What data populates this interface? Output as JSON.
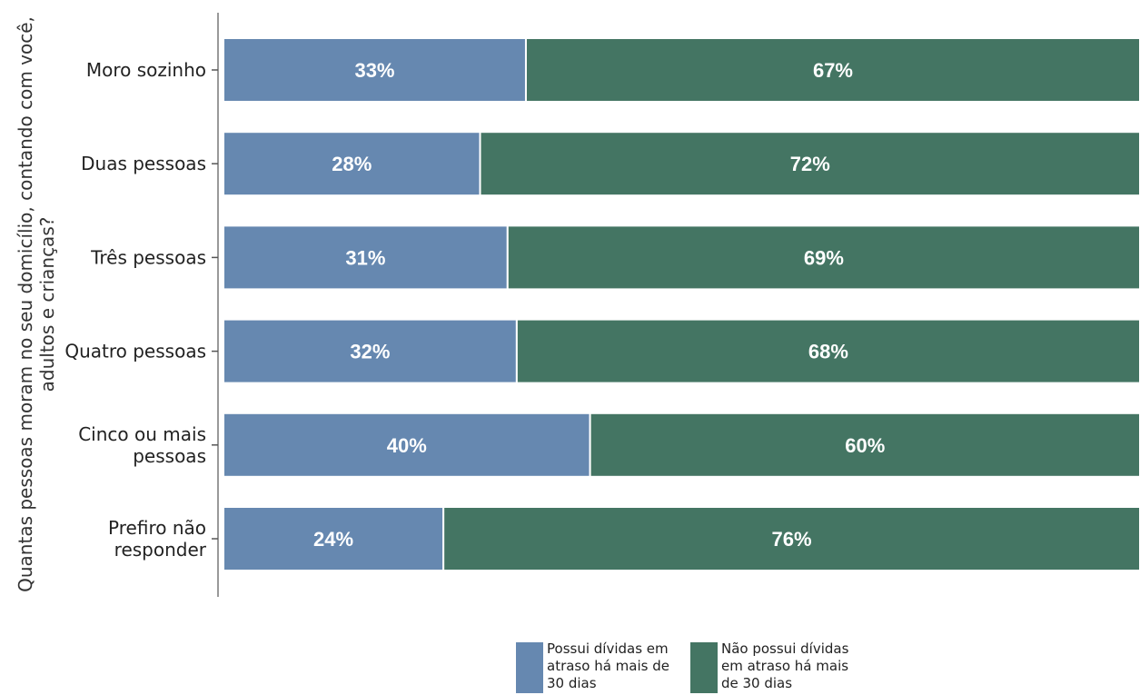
{
  "chart_data": {
    "type": "bar",
    "orientation": "horizontal",
    "stacked": true,
    "percent": true,
    "ylabel": "Quantas pessoas moram no seu domicílio, contando com você, adultos e crianças?",
    "ylabel_lines": [
      "Quantas pessoas moram no seu domicílio, contando com você,",
      "adultos e crianças?"
    ],
    "categories": [
      "Moro sozinho",
      "Duas pessoas",
      "Três pessoas",
      "Quatro pessoas",
      "Cinco ou mais pessoas",
      "Prefiro não responder"
    ],
    "category_lines": [
      [
        "Moro sozinho"
      ],
      [
        "Duas pessoas"
      ],
      [
        "Três pessoas"
      ],
      [
        "Quatro pessoas"
      ],
      [
        "Cinco ou mais",
        "pessoas"
      ],
      [
        "Prefiro não",
        "responder"
      ]
    ],
    "series": [
      {
        "name": "Possui dívidas em atraso há mais de 30 dias",
        "color": "#6688b0",
        "values": [
          33,
          28,
          31,
          32,
          40,
          24
        ],
        "labels": [
          "33%",
          "28%",
          "31%",
          "32%",
          "40%",
          "24%"
        ]
      },
      {
        "name": "Não possui dívidas em atraso há mais de 30 dias",
        "color": "#447563",
        "values": [
          67,
          72,
          69,
          68,
          60,
          76
        ],
        "labels": [
          "67%",
          "72%",
          "69%",
          "68%",
          "60%",
          "76%"
        ]
      }
    ],
    "xlim": [
      0,
      100
    ],
    "legend_position": "bottom"
  }
}
